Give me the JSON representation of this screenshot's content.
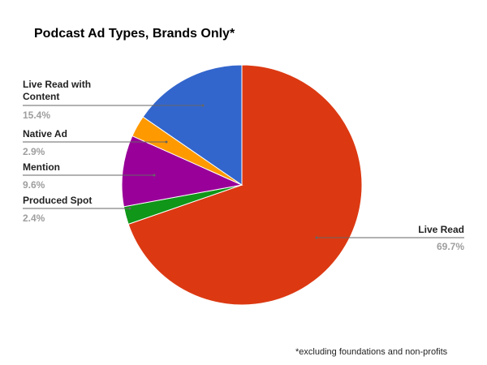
{
  "chart_data": {
    "type": "pie",
    "title": "Podcast Ad Types, Brands Only*",
    "categories": [
      "Live Read",
      "Produced Spot",
      "Mention",
      "Native Ad",
      "Live Read with Content"
    ],
    "values": [
      69.7,
      2.4,
      9.6,
      2.9,
      15.4
    ],
    "value_labels": [
      "69.7%",
      "2.4%",
      "9.6%",
      "2.9%",
      "15.4%"
    ],
    "colors": [
      "#dc3912",
      "#109618",
      "#990099",
      "#ff9900",
      "#3366cc"
    ],
    "footnote": "*excluding foundations and non-profits"
  }
}
